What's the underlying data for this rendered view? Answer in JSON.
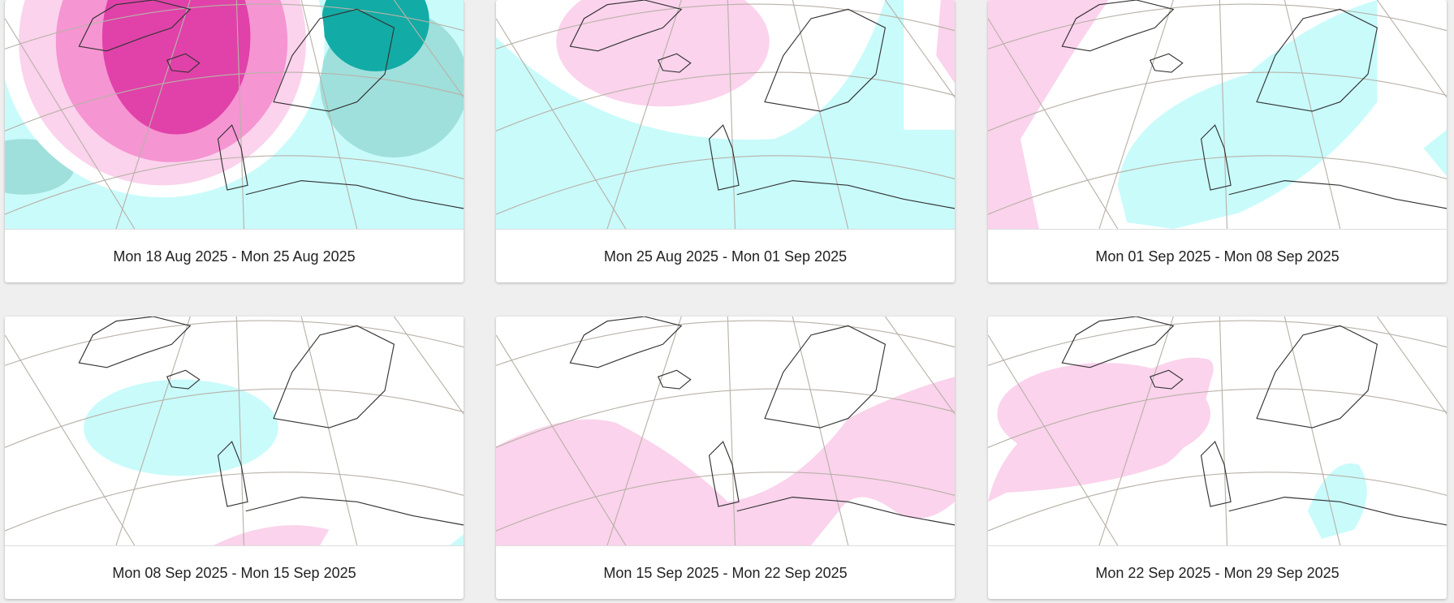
{
  "cards": [
    {
      "caption": "Mon 18 Aug 2025 - Mon 25 Aug 2025"
    },
    {
      "caption": "Mon 25 Aug 2025 - Mon 01 Sep 2025"
    },
    {
      "caption": "Mon 01 Sep 2025 - Mon 08 Sep 2025"
    },
    {
      "caption": "Mon 08 Sep 2025 - Mon 15 Sep 2025"
    },
    {
      "caption": "Mon 15 Sep 2025 - Mon 22 Sep 2025"
    },
    {
      "caption": "Mon 22 Sep 2025 - Mon 29 Sep 2025"
    }
  ]
}
